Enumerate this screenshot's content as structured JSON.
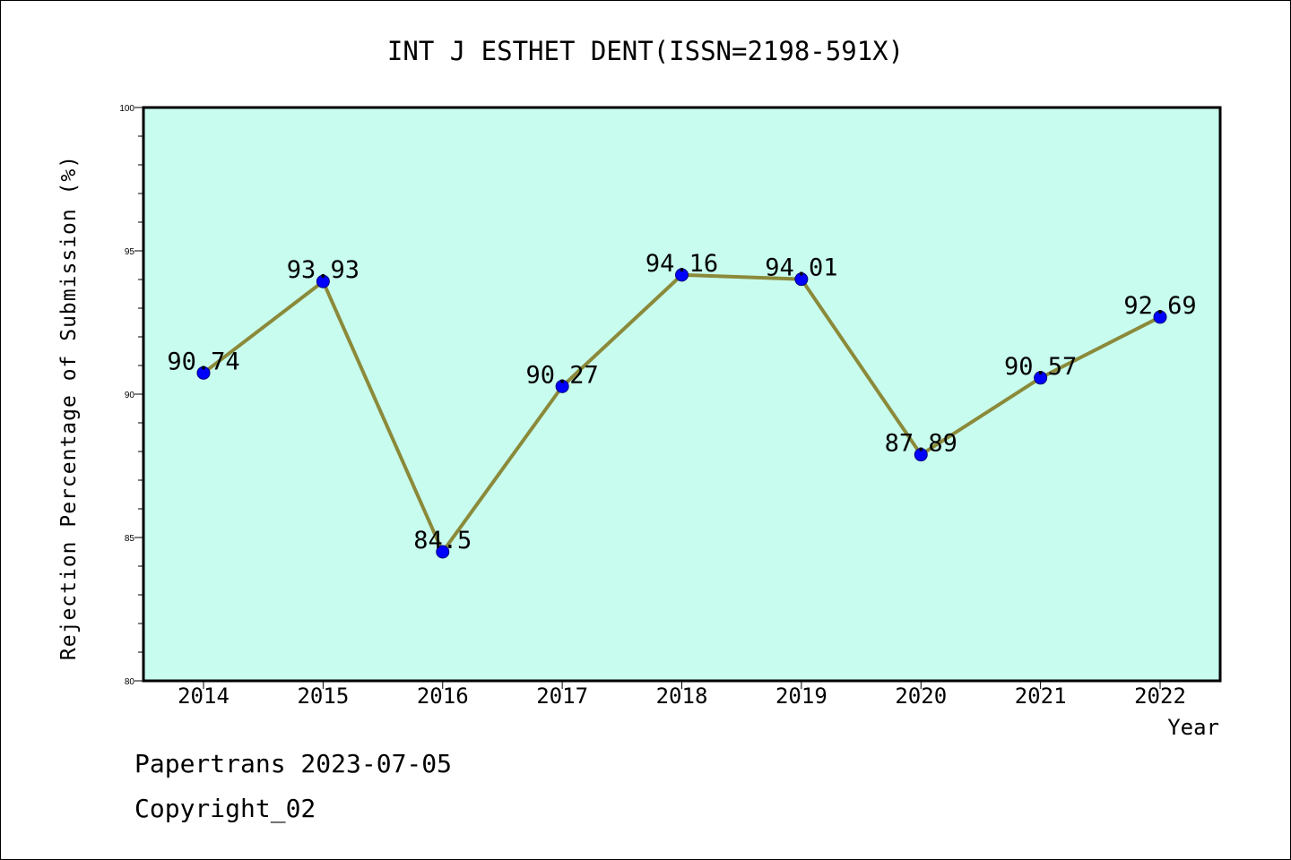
{
  "chart_data": {
    "type": "line",
    "title": "INT J ESTHET DENT(ISSN=2198-591X)",
    "xlabel": "Year",
    "ylabel": "Rejection Percentage of Submission (%)",
    "categories": [
      "2014",
      "2015",
      "2016",
      "2017",
      "2018",
      "2019",
      "2020",
      "2021",
      "2022"
    ],
    "values": [
      90.74,
      93.93,
      84.5,
      90.27,
      94.16,
      94.01,
      87.89,
      90.57,
      92.69
    ],
    "value_labels": [
      "90.74",
      "93.93",
      "84.5",
      "90.27",
      "94.16",
      "94.01",
      "87.89",
      "90.57",
      "92.69"
    ],
    "ylim": [
      80,
      100
    ],
    "yticks": [
      "80",
      "85",
      "90",
      "95",
      "100"
    ],
    "grid": false,
    "legend": "none",
    "colors": {
      "plot_background": "#c8fcee",
      "line": "#8b8a3a",
      "marker": "#0000ff"
    }
  },
  "footer": {
    "date_line": "Papertrans 2023-07-05",
    "copyright_line": "Copyright_02"
  }
}
